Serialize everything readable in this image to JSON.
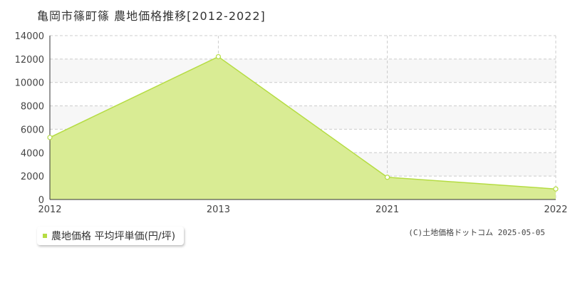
{
  "colors": {
    "area_fill": "#d9ec94",
    "line": "#b5dc43",
    "grid": "#cccccc",
    "plot_bg_band": "#f7f7f7",
    "axis": "#333333",
    "legend_marker": "#b5dc43"
  },
  "chart_data": {
    "type": "area",
    "title": "亀岡市篠町篠 農地価格推移[2012-2022]",
    "x": [
      "2012",
      "2013",
      "2021",
      "2022"
    ],
    "y_ticks": [
      0,
      2000,
      4000,
      6000,
      8000,
      10000,
      12000,
      14000
    ],
    "ylim": [
      0,
      14000
    ],
    "grid": true,
    "legend_position": "bottom-left",
    "series": [
      {
        "name": "農地価格 平均坪単価(円/坪)",
        "values": [
          5300,
          12200,
          1900,
          900
        ]
      }
    ]
  },
  "legend": {
    "label": "農地価格 平均坪単価(円/坪)"
  },
  "footer": {
    "copyright": "(C)土地価格ドットコム 2025-05-05"
  }
}
